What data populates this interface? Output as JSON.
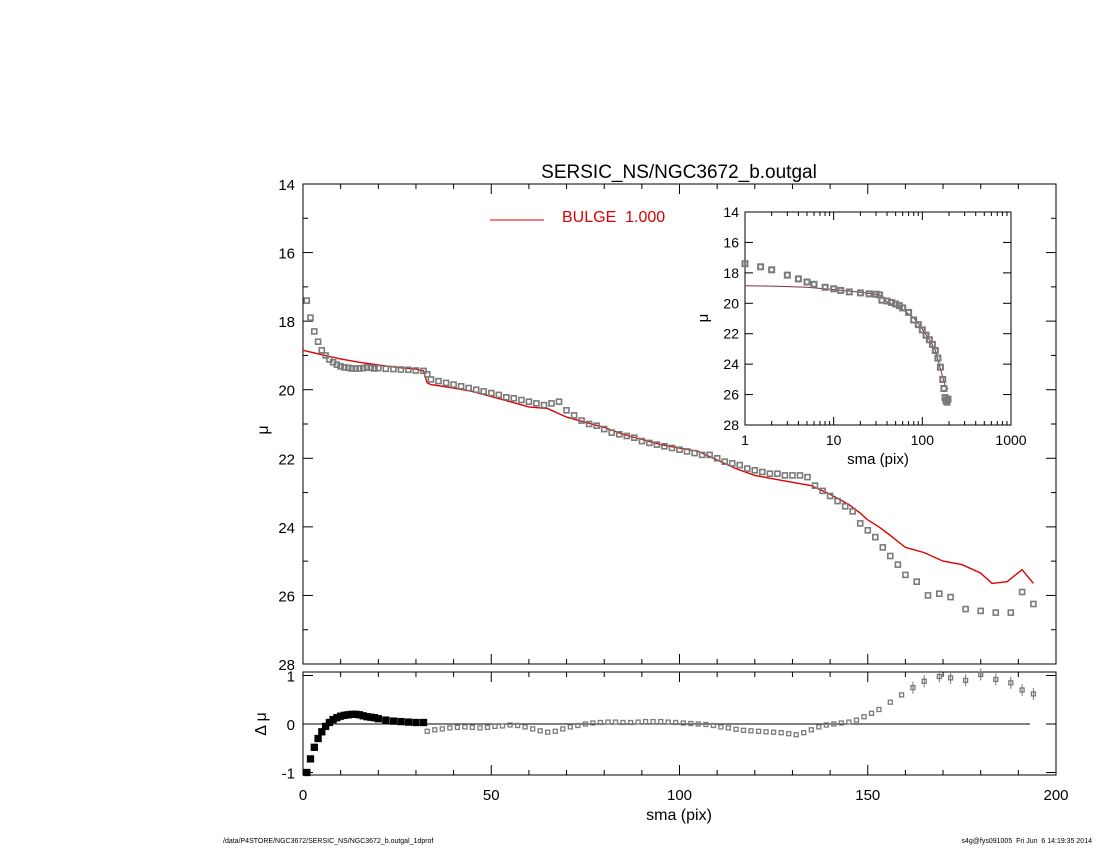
{
  "chart_data": [
    {
      "type": "scatter",
      "panel": "main-profile",
      "title": "SERSIC_NS/NGC3672_b.outgal",
      "xlabel": "",
      "ylabel": "μ",
      "xlim": [
        0,
        200
      ],
      "ylim": [
        28,
        14
      ],
      "y_inverted": true,
      "x_ticks": [
        0,
        50,
        100,
        150,
        200
      ],
      "y_ticks": [
        14,
        16,
        18,
        20,
        22,
        24,
        26,
        28
      ],
      "grid": false,
      "legend": {
        "placement": "top-center",
        "entries": [
          {
            "label": "BULGE  1.000",
            "color": "#dd0000"
          }
        ]
      },
      "colors": {
        "data": "#7a7a7a",
        "model": "#dd0000",
        "axes": "#000000"
      },
      "series": [
        {
          "kind": "points",
          "marker": "square",
          "x": [
            1,
            2,
            3,
            4,
            5,
            6,
            7,
            8,
            9,
            10,
            11,
            12,
            13,
            14,
            15,
            16,
            17,
            18,
            19,
            20,
            22,
            24,
            26,
            28,
            30,
            32,
            33,
            34,
            36,
            38,
            40,
            42,
            44,
            46,
            48,
            50,
            52,
            54,
            56,
            58,
            60,
            62,
            64,
            66,
            68,
            70,
            72,
            74,
            76,
            78,
            80,
            82,
            84,
            86,
            88,
            90,
            92,
            94,
            96,
            98,
            100,
            102,
            104,
            106,
            108,
            110,
            112,
            114,
            116,
            118,
            120,
            122,
            124,
            126,
            128,
            130,
            132,
            134,
            136,
            138,
            140,
            142,
            144,
            146,
            148,
            150,
            152,
            154,
            156,
            158,
            160,
            163,
            166,
            169,
            172,
            176,
            180,
            184,
            188,
            191,
            194
          ],
          "values": [
            17.4,
            17.9,
            18.3,
            18.6,
            18.85,
            19.0,
            19.12,
            19.2,
            19.27,
            19.32,
            19.35,
            19.36,
            19.38,
            19.38,
            19.38,
            19.37,
            19.35,
            19.36,
            19.38,
            19.37,
            19.39,
            19.4,
            19.41,
            19.42,
            19.44,
            19.45,
            19.55,
            19.7,
            19.75,
            19.8,
            19.85,
            19.9,
            19.95,
            20.0,
            20.05,
            20.1,
            20.15,
            20.22,
            20.25,
            20.3,
            20.35,
            20.4,
            20.45,
            20.4,
            20.35,
            20.6,
            20.75,
            20.9,
            21.0,
            21.05,
            21.15,
            21.25,
            21.3,
            21.35,
            21.4,
            21.5,
            21.55,
            21.6,
            21.65,
            21.7,
            21.75,
            21.8,
            21.85,
            21.9,
            21.9,
            22.0,
            22.1,
            22.15,
            22.2,
            22.3,
            22.35,
            22.4,
            22.45,
            22.45,
            22.5,
            22.5,
            22.5,
            22.55,
            22.8,
            22.95,
            23.1,
            23.25,
            23.4,
            23.55,
            23.9,
            24.1,
            24.3,
            24.6,
            24.85,
            25.1,
            25.4,
            25.6,
            26.0,
            25.95,
            26.05,
            26.4,
            26.45,
            26.5,
            26.5,
            25.9,
            26.25
          ]
        },
        {
          "kind": "line",
          "name": "BULGE  1.000",
          "x": [
            0,
            5,
            10,
            15,
            20,
            25,
            30,
            32,
            33,
            34,
            40,
            45,
            50,
            55,
            60,
            65,
            70,
            75,
            80,
            85,
            90,
            95,
            100,
            105,
            110,
            115,
            120,
            125,
            130,
            135,
            140,
            145,
            148,
            150,
            153,
            156,
            160,
            165,
            170,
            175,
            180,
            183,
            187,
            191,
            194
          ],
          "values": [
            18.85,
            18.98,
            19.1,
            19.2,
            19.28,
            19.35,
            19.4,
            19.45,
            19.8,
            19.85,
            19.95,
            20.05,
            20.2,
            20.35,
            20.5,
            20.55,
            20.8,
            20.95,
            21.1,
            21.3,
            21.45,
            21.6,
            21.7,
            21.8,
            22.05,
            22.3,
            22.5,
            22.6,
            22.7,
            22.8,
            23.05,
            23.35,
            23.6,
            23.8,
            24.0,
            24.25,
            24.6,
            24.75,
            25.0,
            25.1,
            25.35,
            25.65,
            25.6,
            25.25,
            25.65
          ]
        }
      ]
    },
    {
      "type": "scatter",
      "panel": "inset-log-profile",
      "xlabel": "sma (pix)",
      "ylabel": "μ",
      "x_scale": "log",
      "xlim": [
        1,
        1000
      ],
      "ylim": [
        28,
        14
      ],
      "y_inverted": true,
      "x_ticks": [
        1,
        10,
        100,
        1000
      ],
      "y_ticks": [
        14,
        16,
        18,
        20,
        22,
        24,
        26,
        28
      ],
      "grid": false,
      "colors": {
        "data": "#7a7a7a",
        "model": "#803040"
      },
      "series": [
        {
          "kind": "points",
          "marker": "square",
          "x": [
            1.0,
            1.5,
            2,
            3,
            4,
            5,
            6,
            8,
            10,
            12,
            15,
            20,
            25,
            30,
            33,
            35,
            40,
            45,
            50,
            55,
            60,
            70,
            80,
            90,
            100,
            110,
            120,
            130,
            140,
            150,
            160,
            170,
            175,
            180,
            185,
            190,
            195
          ],
          "values": [
            17.4,
            17.6,
            17.8,
            18.15,
            18.4,
            18.6,
            18.75,
            18.95,
            19.05,
            19.15,
            19.25,
            19.32,
            19.38,
            19.4,
            19.45,
            19.8,
            19.85,
            19.95,
            20.05,
            20.15,
            20.3,
            20.6,
            21.1,
            21.4,
            21.75,
            22.1,
            22.4,
            22.7,
            23.1,
            23.6,
            24.2,
            25.0,
            25.6,
            26.2,
            26.4,
            26.5,
            26.3
          ]
        },
        {
          "kind": "line",
          "x": [
            1,
            2,
            5,
            10,
            20,
            33,
            40,
            60,
            80,
            100,
            120,
            140,
            160,
            180,
            195
          ],
          "values": [
            18.85,
            18.87,
            18.95,
            19.1,
            19.28,
            19.45,
            19.9,
            20.4,
            20.95,
            21.7,
            22.4,
            23.1,
            24.3,
            25.4,
            25.65
          ]
        }
      ]
    },
    {
      "type": "scatter",
      "panel": "residuals",
      "xlabel": "sma (pix)",
      "ylabel": "Δ μ",
      "xlim": [
        0,
        200
      ],
      "ylim": [
        -1,
        1
      ],
      "x_ticks": [
        0,
        50,
        100,
        150,
        200
      ],
      "y_ticks": [
        -1,
        0,
        1
      ],
      "reference_line": 0,
      "grid": false,
      "colors": {
        "data": "#7a7a7a",
        "dense": "#000000",
        "axes": "#000000"
      },
      "series": [
        {
          "kind": "points",
          "marker": "square",
          "x": [
            1,
            2,
            3,
            4,
            5,
            6,
            7,
            8,
            9,
            10,
            11,
            12,
            13,
            14,
            15,
            16,
            17,
            18,
            19,
            20,
            22,
            24,
            26,
            28,
            30,
            32,
            33,
            35,
            37,
            39,
            41,
            43,
            45,
            47,
            49,
            51,
            53,
            55,
            57,
            59,
            61,
            63,
            65,
            67,
            69,
            71,
            73,
            75,
            77,
            79,
            81,
            83,
            85,
            87,
            89,
            91,
            93,
            95,
            97,
            99,
            101,
            103,
            105,
            107,
            109,
            111,
            113,
            115,
            117,
            119,
            121,
            123,
            125,
            127,
            129,
            131,
            133,
            135,
            137,
            139,
            141,
            143,
            145,
            147,
            149,
            151,
            153,
            156,
            159,
            162,
            165,
            169,
            172,
            176,
            180,
            184,
            188,
            191,
            194
          ],
          "values": [
            -1.0,
            -0.72,
            -0.48,
            -0.3,
            -0.16,
            -0.05,
            0.03,
            0.09,
            0.13,
            0.16,
            0.18,
            0.19,
            0.2,
            0.2,
            0.19,
            0.17,
            0.15,
            0.14,
            0.13,
            0.11,
            0.08,
            0.06,
            0.05,
            0.04,
            0.03,
            0.03,
            -0.15,
            -0.12,
            -0.1,
            -0.08,
            -0.07,
            -0.06,
            -0.07,
            -0.08,
            -0.07,
            -0.05,
            -0.04,
            -0.02,
            -0.03,
            -0.06,
            -0.1,
            -0.14,
            -0.17,
            -0.15,
            -0.1,
            -0.06,
            -0.03,
            0.0,
            0.02,
            0.03,
            0.04,
            0.04,
            0.03,
            0.03,
            0.04,
            0.05,
            0.05,
            0.05,
            0.04,
            0.03,
            0.02,
            0.01,
            0.0,
            -0.01,
            -0.03,
            -0.06,
            -0.08,
            -0.11,
            -0.13,
            -0.14,
            -0.15,
            -0.16,
            -0.17,
            -0.18,
            -0.2,
            -0.22,
            -0.18,
            -0.12,
            -0.06,
            -0.02,
            0.0,
            0.02,
            0.04,
            0.08,
            0.15,
            0.22,
            0.3,
            0.45,
            0.6,
            0.75,
            0.88,
            0.98,
            0.95,
            0.9,
            1.02,
            0.92,
            0.85,
            0.7,
            0.62
          ]
        }
      ]
    }
  ],
  "footer": {
    "left": "/data/P4STORE/NGC3672/SERSIC_NS/NGC3672_b.outgal_1dprof",
    "right": "s4g@fys091005  Fri Jun  6 14:19:35 2014"
  }
}
